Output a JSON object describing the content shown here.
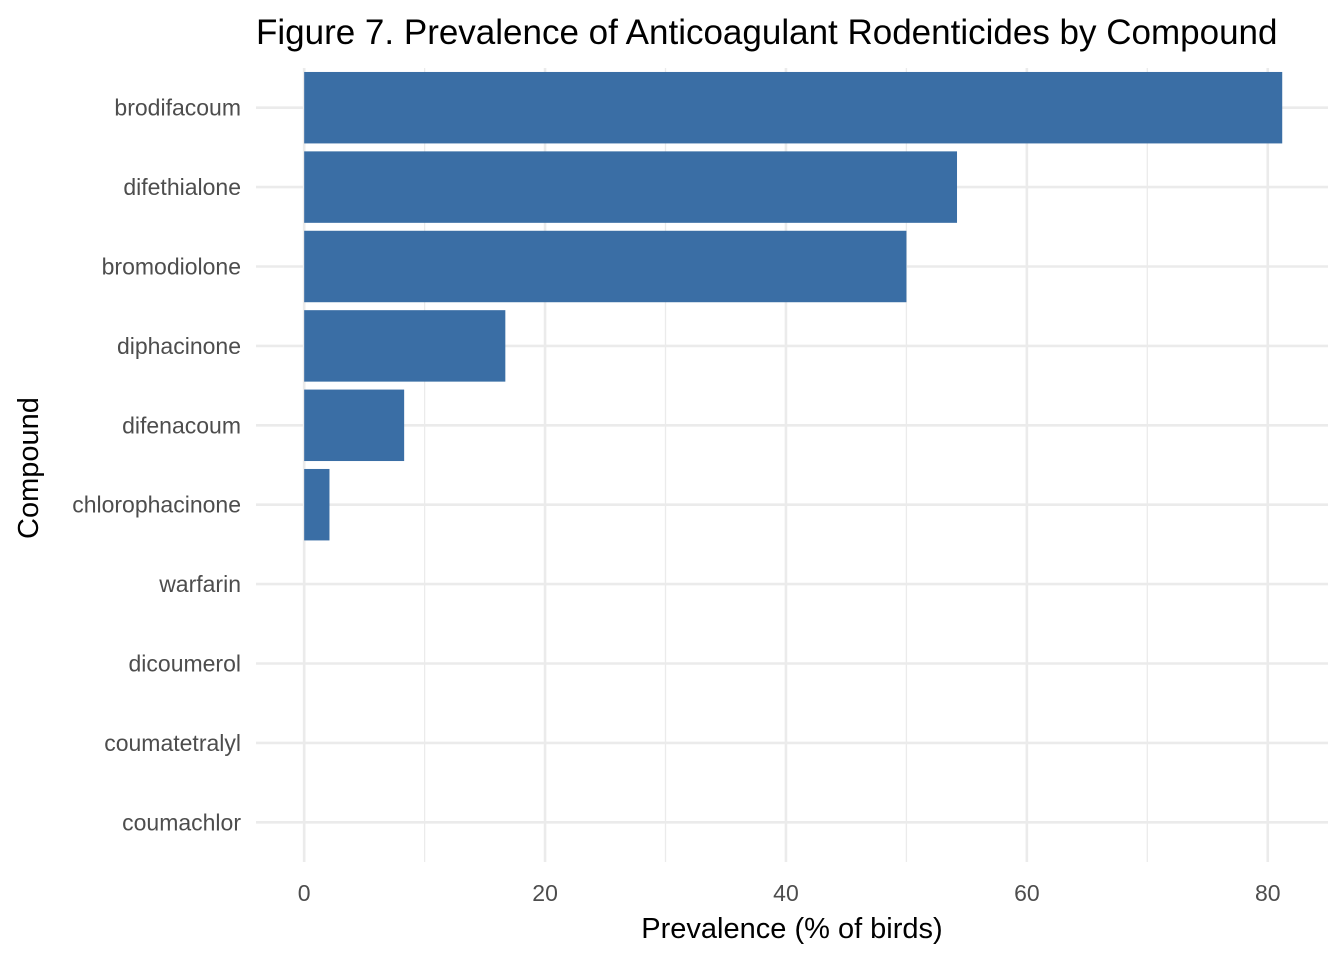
{
  "chart_data": {
    "type": "bar",
    "orientation": "horizontal",
    "title": "Figure 7. Prevalence of Anticoagulant Rodenticides by Compound",
    "xlabel": "Prevalence (% of birds)",
    "ylabel": "Compound",
    "categories": [
      "brodifacoum",
      "difethialone",
      "bromodiolone",
      "diphacinone",
      "difenacoum",
      "chlorophacinone",
      "warfarin",
      "dicoumerol",
      "coumatetralyl",
      "coumachlor"
    ],
    "values": [
      81.2,
      54.2,
      50.0,
      16.7,
      8.3,
      2.1,
      0,
      0,
      0,
      0
    ],
    "xlim": [
      -4,
      85
    ],
    "x_ticks": [
      0,
      20,
      40,
      60,
      80
    ],
    "x_tick_labels": [
      "0",
      "20",
      "40",
      "60",
      "80"
    ],
    "grid": true,
    "legend": "none",
    "colors": {
      "bar": "#3A6EA5",
      "grid": "#EBEBEB",
      "tick_text": "#4D4D4D",
      "title_text": "#000000"
    }
  }
}
